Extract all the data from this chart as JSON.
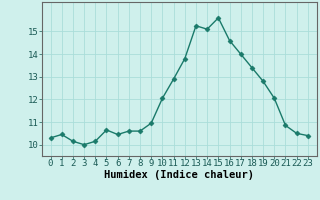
{
  "x": [
    0,
    1,
    2,
    3,
    4,
    5,
    6,
    7,
    8,
    9,
    10,
    11,
    12,
    13,
    14,
    15,
    16,
    17,
    18,
    19,
    20,
    21,
    22,
    23
  ],
  "y": [
    10.3,
    10.45,
    10.15,
    10.0,
    10.15,
    10.65,
    10.45,
    10.6,
    10.6,
    10.95,
    12.05,
    12.9,
    13.8,
    15.25,
    15.1,
    15.6,
    14.6,
    14.0,
    13.4,
    12.8,
    12.05,
    10.85,
    10.5,
    10.4
  ],
  "line_color": "#1a7a6a",
  "marker": "D",
  "markersize": 2.5,
  "linewidth": 1.0,
  "bg_color": "#cff0ec",
  "grid_color_major": "#aaddda",
  "grid_color_minor": "#cce8e5",
  "xlabel": "Humidex (Indice chaleur)",
  "ylim": [
    9.5,
    16.3
  ],
  "yticks": [
    10,
    11,
    12,
    13,
    14,
    15
  ],
  "xticks": [
    0,
    1,
    2,
    3,
    4,
    5,
    6,
    7,
    8,
    9,
    10,
    11,
    12,
    13,
    14,
    15,
    16,
    17,
    18,
    19,
    20,
    21,
    22,
    23
  ],
  "xlabel_fontsize": 7.5,
  "tick_fontsize": 6.5
}
